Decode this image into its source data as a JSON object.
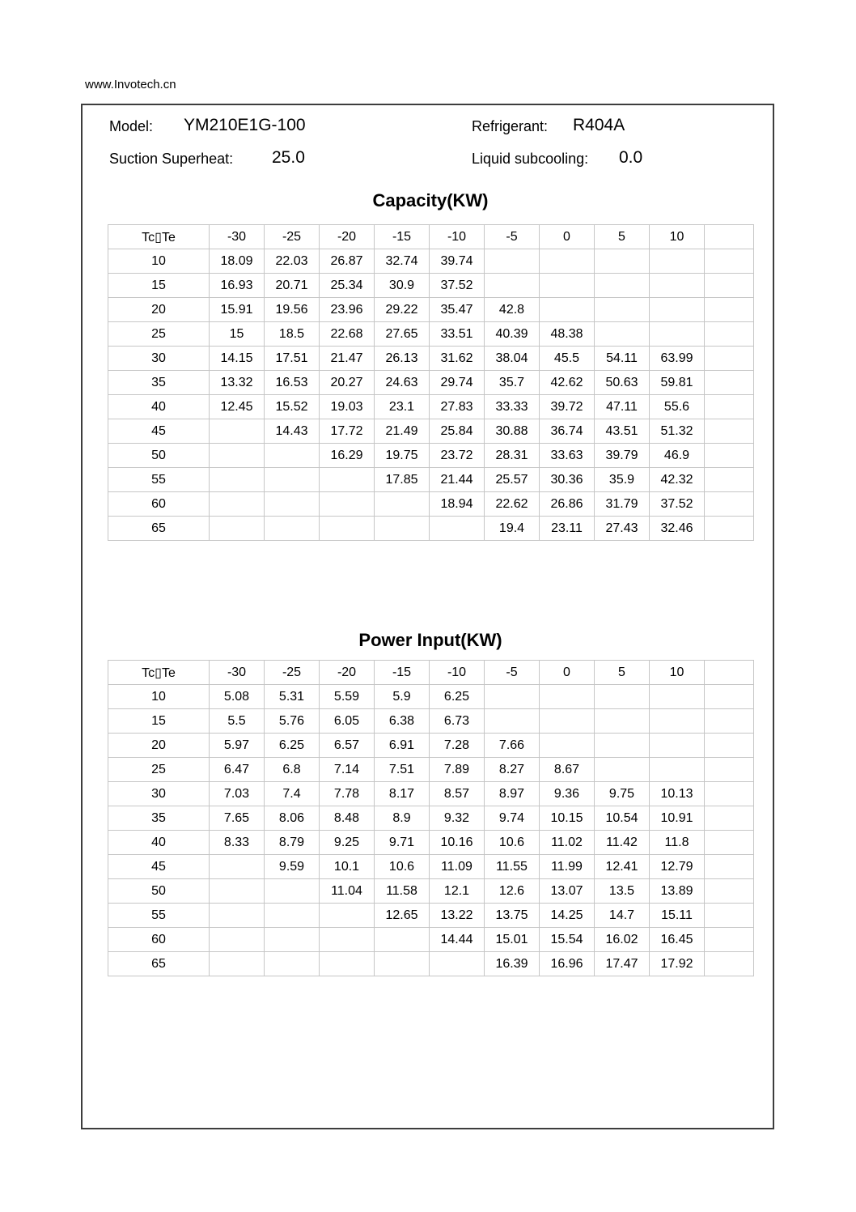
{
  "page": {
    "url_text": "www.Invotech.cn"
  },
  "header": {
    "model_label": "Model:",
    "model_value": "YM210E1G-100",
    "refrigerant_label": "Refrigerant:",
    "refrigerant_value": "R404A",
    "superheat_label": "Suction Superheat:",
    "superheat_value": "25.0",
    "subcooling_label": "Liquid subcooling:",
    "subcooling_value": "0.0"
  },
  "tables": [
    {
      "title": "Capacity(KW)",
      "corner": "Tc▯Te",
      "col_headers": [
        "-30",
        "-25",
        "-20",
        "-15",
        "-10",
        "-5",
        "0",
        "5",
        "10",
        ""
      ],
      "rows": [
        {
          "tc": "10",
          "values": [
            "18.09",
            "22.03",
            "26.87",
            "32.74",
            "39.74",
            "",
            "",
            "",
            ""
          ]
        },
        {
          "tc": "15",
          "values": [
            "16.93",
            "20.71",
            "25.34",
            "30.9",
            "37.52",
            "",
            "",
            "",
            ""
          ]
        },
        {
          "tc": "20",
          "values": [
            "15.91",
            "19.56",
            "23.96",
            "29.22",
            "35.47",
            "42.8",
            "",
            "",
            ""
          ]
        },
        {
          "tc": "25",
          "values": [
            "15",
            "18.5",
            "22.68",
            "27.65",
            "33.51",
            "40.39",
            "48.38",
            "",
            ""
          ]
        },
        {
          "tc": "30",
          "values": [
            "14.15",
            "17.51",
            "21.47",
            "26.13",
            "31.62",
            "38.04",
            "45.5",
            "54.11",
            "63.99"
          ]
        },
        {
          "tc": "35",
          "values": [
            "13.32",
            "16.53",
            "20.27",
            "24.63",
            "29.74",
            "35.7",
            "42.62",
            "50.63",
            "59.81"
          ]
        },
        {
          "tc": "40",
          "values": [
            "12.45",
            "15.52",
            "19.03",
            "23.1",
            "27.83",
            "33.33",
            "39.72",
            "47.11",
            "55.6"
          ]
        },
        {
          "tc": "45",
          "values": [
            "",
            "14.43",
            "17.72",
            "21.49",
            "25.84",
            "30.88",
            "36.74",
            "43.51",
            "51.32"
          ]
        },
        {
          "tc": "50",
          "values": [
            "",
            "",
            "16.29",
            "19.75",
            "23.72",
            "28.31",
            "33.63",
            "39.79",
            "46.9"
          ]
        },
        {
          "tc": "55",
          "values": [
            "",
            "",
            "",
            "17.85",
            "21.44",
            "25.57",
            "30.36",
            "35.9",
            "42.32"
          ]
        },
        {
          "tc": "60",
          "values": [
            "",
            "",
            "",
            "",
            "18.94",
            "22.62",
            "26.86",
            "31.79",
            "37.52"
          ]
        },
        {
          "tc": "65",
          "values": [
            "",
            "",
            "",
            "",
            "",
            "19.4",
            "23.11",
            "27.43",
            "32.46"
          ]
        }
      ]
    },
    {
      "title": "Power Input(KW)",
      "corner": "Tc▯Te",
      "col_headers": [
        "-30",
        "-25",
        "-20",
        "-15",
        "-10",
        "-5",
        "0",
        "5",
        "10",
        ""
      ],
      "rows": [
        {
          "tc": "10",
          "values": [
            "5.08",
            "5.31",
            "5.59",
            "5.9",
            "6.25",
            "",
            "",
            "",
            ""
          ]
        },
        {
          "tc": "15",
          "values": [
            "5.5",
            "5.76",
            "6.05",
            "6.38",
            "6.73",
            "",
            "",
            "",
            ""
          ]
        },
        {
          "tc": "20",
          "values": [
            "5.97",
            "6.25",
            "6.57",
            "6.91",
            "7.28",
            "7.66",
            "",
            "",
            ""
          ]
        },
        {
          "tc": "25",
          "values": [
            "6.47",
            "6.8",
            "7.14",
            "7.51",
            "7.89",
            "8.27",
            "8.67",
            "",
            ""
          ]
        },
        {
          "tc": "30",
          "values": [
            "7.03",
            "7.4",
            "7.78",
            "8.17",
            "8.57",
            "8.97",
            "9.36",
            "9.75",
            "10.13"
          ]
        },
        {
          "tc": "35",
          "values": [
            "7.65",
            "8.06",
            "8.48",
            "8.9",
            "9.32",
            "9.74",
            "10.15",
            "10.54",
            "10.91"
          ]
        },
        {
          "tc": "40",
          "values": [
            "8.33",
            "8.79",
            "9.25",
            "9.71",
            "10.16",
            "10.6",
            "11.02",
            "11.42",
            "11.8"
          ]
        },
        {
          "tc": "45",
          "values": [
            "",
            "9.59",
            "10.1",
            "10.6",
            "11.09",
            "11.55",
            "11.99",
            "12.41",
            "12.79"
          ]
        },
        {
          "tc": "50",
          "values": [
            "",
            "",
            "11.04",
            "11.58",
            "12.1",
            "12.6",
            "13.07",
            "13.5",
            "13.89"
          ]
        },
        {
          "tc": "55",
          "values": [
            "",
            "",
            "",
            "12.65",
            "13.22",
            "13.75",
            "14.25",
            "14.7",
            "15.11"
          ]
        },
        {
          "tc": "60",
          "values": [
            "",
            "",
            "",
            "",
            "14.44",
            "15.01",
            "15.54",
            "16.02",
            "16.45"
          ]
        },
        {
          "tc": "65",
          "values": [
            "",
            "",
            "",
            "",
            "",
            "16.39",
            "16.96",
            "17.47",
            "17.92"
          ]
        }
      ]
    }
  ]
}
